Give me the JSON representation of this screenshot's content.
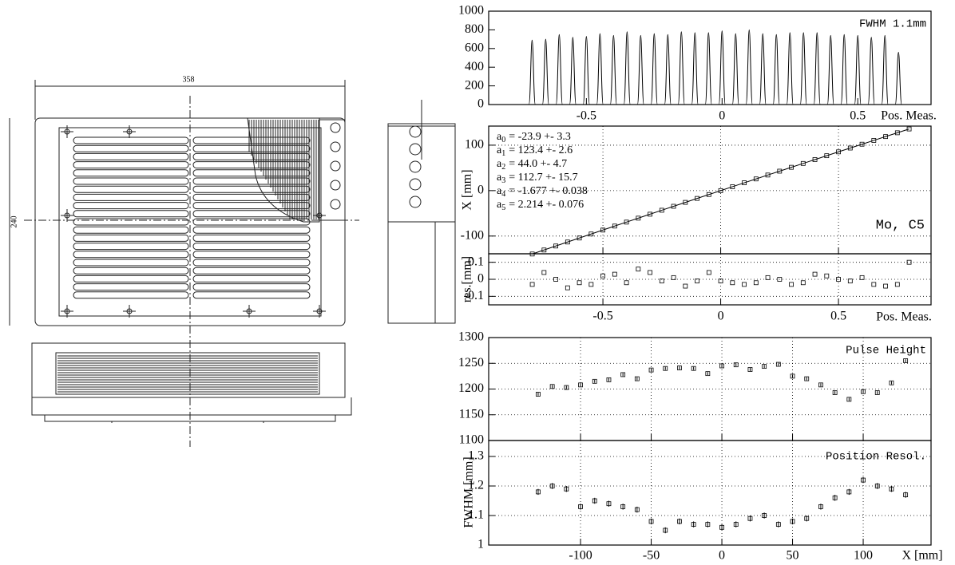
{
  "drawing": {
    "width_dim": "358",
    "height_dim": "240"
  },
  "chart_data": [
    {
      "type": "peaks",
      "annotation": "FWHM 1.1mm",
      "xlabel": "Pos. Meas.",
      "grid": false,
      "x": [
        -0.7,
        -0.65,
        -0.6,
        -0.55,
        -0.5,
        -0.45,
        -0.4,
        -0.35,
        -0.3,
        -0.25,
        -0.2,
        -0.15,
        -0.1,
        -0.05,
        0,
        0.05,
        0.1,
        0.15,
        0.2,
        0.25,
        0.3,
        0.35,
        0.4,
        0.45,
        0.5,
        0.55,
        0.6,
        0.65
      ],
      "values": [
        690,
        700,
        750,
        720,
        730,
        760,
        740,
        780,
        740,
        760,
        750,
        780,
        770,
        770,
        790,
        760,
        800,
        760,
        750,
        770,
        770,
        770,
        740,
        750,
        740,
        720,
        740,
        560
      ],
      "xlim": [
        -0.86,
        0.77
      ],
      "xticks": [
        -0.5,
        0,
        0.5
      ],
      "ylim": [
        0,
        1000
      ],
      "yticks": [
        0,
        200,
        400,
        600,
        800,
        1000
      ]
    },
    {
      "type": "fit",
      "ylabel": "X [mm]",
      "annotation": "Mo, C5",
      "grid": true,
      "params": [
        {
          "sym": "a",
          "sub": "0",
          "text": "= -23.9 +- 3.3"
        },
        {
          "sym": "a",
          "sub": "1",
          "text": "= 123.4 +- 2.6"
        },
        {
          "sym": "a",
          "sub": "2",
          "text": "=  44.0 +- 4.7"
        },
        {
          "sym": "a",
          "sub": "3",
          "text": "= 112.7 +- 15.7"
        },
        {
          "sym": "a",
          "sub": "4",
          "text": "= -1.677 +- 0.038"
        },
        {
          "sym": "a",
          "sub": "5",
          "text": "= 2.214 +- 0.076"
        }
      ],
      "x": [
        -0.8,
        -0.75,
        -0.7,
        -0.65,
        -0.6,
        -0.55,
        -0.5,
        -0.45,
        -0.4,
        -0.35,
        -0.3,
        -0.25,
        -0.2,
        -0.15,
        -0.1,
        -0.05,
        0,
        0.05,
        0.1,
        0.15,
        0.2,
        0.25,
        0.3,
        0.35,
        0.4,
        0.45,
        0.5,
        0.55,
        0.6,
        0.65,
        0.7,
        0.75,
        0.8
      ],
      "values": [
        -139.5,
        -130.7,
        -121.9,
        -113.1,
        -104.3,
        -95.5,
        -86.8,
        -78.0,
        -69.3,
        -60.6,
        -51.9,
        -43.2,
        -34.5,
        -25.9,
        -17.2,
        -8.6,
        0,
        8.6,
        17.2,
        25.7,
        34.3,
        42.8,
        51.3,
        59.8,
        68.3,
        76.8,
        85.3,
        93.7,
        102.1,
        110.5,
        118.9,
        127.3,
        135.7
      ],
      "xlim": [
        -0.985,
        0.893
      ],
      "xticks": [
        -0.5,
        0,
        0.5
      ],
      "ylim": [
        -139,
        142
      ],
      "yticks": [
        -100,
        0,
        100
      ]
    },
    {
      "type": "scatter",
      "ylabel": "res.[mm]",
      "xlabel": "Pos. Meas.",
      "grid": true,
      "x": [
        -0.8,
        -0.75,
        -0.7,
        -0.65,
        -0.6,
        -0.55,
        -0.5,
        -0.45,
        -0.4,
        -0.35,
        -0.3,
        -0.25,
        -0.2,
        -0.15,
        -0.1,
        -0.05,
        0,
        0.05,
        0.1,
        0.15,
        0.2,
        0.25,
        0.3,
        0.35,
        0.4,
        0.45,
        0.5,
        0.55,
        0.6,
        0.65,
        0.7,
        0.75,
        0.8
      ],
      "values": [
        -0.03,
        0.04,
        0.0,
        -0.05,
        -0.02,
        -0.03,
        0.02,
        0.03,
        -0.02,
        0.06,
        0.04,
        -0.01,
        0.01,
        -0.04,
        -0.01,
        0.04,
        -0.01,
        -0.02,
        -0.03,
        -0.02,
        0.01,
        0.0,
        -0.03,
        -0.02,
        0.03,
        0.02,
        0.0,
        -0.01,
        0.01,
        -0.03,
        -0.04,
        -0.03,
        0.1
      ],
      "xlim": [
        -0.985,
        0.893
      ],
      "xticks": [
        -0.5,
        0,
        0.5
      ],
      "ylim": [
        -0.15,
        0.15
      ],
      "yticks": [
        -0.1,
        0,
        0.1
      ]
    },
    {
      "type": "scatter",
      "annotation": "Pulse Height",
      "grid": true,
      "x": [
        -130,
        -120,
        -110,
        -100,
        -90,
        -80,
        -70,
        -60,
        -50,
        -40,
        -30,
        -20,
        -10,
        0,
        10,
        20,
        30,
        40,
        50,
        60,
        70,
        80,
        90,
        100,
        110,
        120,
        130
      ],
      "values": [
        1190,
        1205,
        1203,
        1208,
        1215,
        1218,
        1228,
        1220,
        1237,
        1240,
        1241,
        1240,
        1230,
        1245,
        1247,
        1238,
        1244,
        1248,
        1225,
        1220,
        1208,
        1193,
        1180,
        1195,
        1193,
        1212,
        1255
      ],
      "errors": [
        3,
        3,
        3,
        3,
        3,
        3,
        3,
        3,
        3,
        3,
        3,
        3,
        3,
        3,
        3,
        3,
        3,
        3,
        3,
        3,
        3,
        3,
        3,
        3,
        3,
        3,
        3
      ],
      "xlim": [
        -165,
        148
      ],
      "xticks": [
        -100,
        -50,
        0,
        50,
        100
      ],
      "ylim": [
        1100,
        1300
      ],
      "yticks": [
        1100,
        1150,
        1200,
        1250,
        1300
      ]
    },
    {
      "type": "scatter",
      "annotation": "Position Resol.",
      "xlabel": "X [mm]",
      "ylabel": "FWHM [mm]",
      "grid": true,
      "x": [
        -130,
        -120,
        -110,
        -100,
        -90,
        -80,
        -70,
        -60,
        -50,
        -40,
        -30,
        -20,
        -10,
        0,
        10,
        20,
        30,
        40,
        50,
        60,
        70,
        80,
        90,
        100,
        110,
        120,
        130
      ],
      "values": [
        1.18,
        1.2,
        1.19,
        1.13,
        1.15,
        1.14,
        1.13,
        1.12,
        1.08,
        1.05,
        1.08,
        1.07,
        1.07,
        1.06,
        1.07,
        1.09,
        1.1,
        1.07,
        1.08,
        1.09,
        1.13,
        1.16,
        1.18,
        1.22,
        1.2,
        1.19,
        1.17
      ],
      "errors": [
        0.01,
        0.01,
        0.01,
        0.01,
        0.01,
        0.01,
        0.01,
        0.01,
        0.01,
        0.01,
        0.01,
        0.01,
        0.01,
        0.01,
        0.01,
        0.01,
        0.01,
        0.01,
        0.01,
        0.01,
        0.01,
        0.01,
        0.01,
        0.01,
        0.01,
        0.01,
        0.01
      ],
      "xlim": [
        -165,
        148
      ],
      "xticks": [
        -100,
        -50,
        0,
        50,
        100
      ],
      "ylim": [
        1,
        1.354
      ],
      "yticks": [
        1,
        1.1,
        1.2,
        1.3
      ]
    }
  ]
}
